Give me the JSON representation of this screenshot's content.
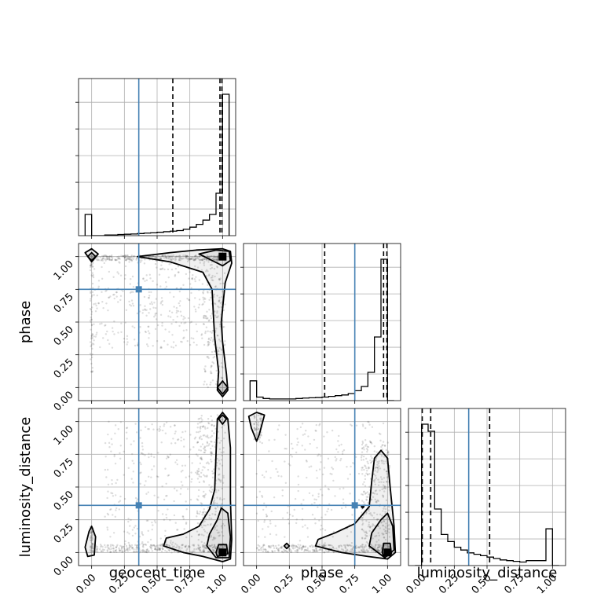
{
  "chart_data": {
    "type": "corner",
    "parameters": [
      "geocent_time",
      "phase",
      "luminosity_distance"
    ],
    "axis_range": [
      -0.1,
      1.1
    ],
    "tick_labels": [
      "0.00",
      "0.25",
      "0.50",
      "0.75",
      "1.00"
    ],
    "tick_values": [
      0.0,
      0.25,
      0.5,
      0.75,
      1.0
    ],
    "grid": true,
    "truths": {
      "geocent_time": 0.36,
      "phase": 0.75,
      "luminosity_distance": 0.36
    },
    "histograms": [
      {
        "parameter": "geocent_time",
        "bin_edges": [
          -0.05,
          0.0,
          0.05,
          0.1,
          0.15,
          0.2,
          0.25,
          0.3,
          0.35,
          0.4,
          0.45,
          0.5,
          0.55,
          0.6,
          0.65,
          0.7,
          0.75,
          0.8,
          0.85,
          0.9,
          0.95,
          1.0,
          1.05
        ],
        "counts": [
          0.15,
          0.0,
          0.0,
          0.005,
          0.005,
          0.008,
          0.01,
          0.012,
          0.015,
          0.018,
          0.02,
          0.024,
          0.028,
          0.032,
          0.036,
          0.045,
          0.06,
          0.08,
          0.11,
          0.15,
          0.3,
          1.0
        ],
        "quantiles": [
          0.62,
          0.98,
          0.995
        ]
      },
      {
        "parameter": "phase",
        "bin_edges": [
          -0.05,
          0.0,
          0.05,
          0.1,
          0.15,
          0.2,
          0.25,
          0.3,
          0.35,
          0.4,
          0.45,
          0.5,
          0.55,
          0.6,
          0.65,
          0.7,
          0.75,
          0.8,
          0.85,
          0.9,
          0.95,
          1.0,
          1.05
        ],
        "counts": [
          0.14,
          0.025,
          0.015,
          0.012,
          0.012,
          0.012,
          0.012,
          0.015,
          0.018,
          0.02,
          0.022,
          0.025,
          0.03,
          0.035,
          0.04,
          0.05,
          0.07,
          0.1,
          0.2,
          0.45,
          1.0,
          0.0
        ],
        "quantiles": [
          0.52,
          0.97,
          0.995
        ]
      },
      {
        "parameter": "luminosity_distance",
        "bin_edges": [
          -0.05,
          0.0,
          0.05,
          0.1,
          0.15,
          0.2,
          0.25,
          0.3,
          0.35,
          0.4,
          0.45,
          0.5,
          0.55,
          0.6,
          0.65,
          0.7,
          0.75,
          0.8,
          0.85,
          0.9,
          0.95,
          1.0,
          1.05
        ],
        "counts": [
          0.0,
          1.0,
          0.95,
          0.4,
          0.22,
          0.17,
          0.13,
          0.11,
          0.09,
          0.08,
          0.07,
          0.06,
          0.05,
          0.04,
          0.035,
          0.03,
          0.025,
          0.035,
          0.035,
          0.035,
          0.26,
          0.0
        ],
        "quantiles": [
          0.005,
          0.07,
          0.52
        ]
      }
    ],
    "density_panels": [
      {
        "x": "geocent_time",
        "y": "phase",
        "outer_contour": [
          [
            -0.05,
            1.03
          ],
          [
            0.0,
            1.06
          ],
          [
            0.05,
            1.02
          ],
          [
            0.0,
            0.96
          ],
          [
            -0.05,
            1.03
          ]
        ],
        "contours": [
          [
            [
              0.35,
              1.0
            ],
            [
              0.6,
              1.03
            ],
            [
              0.8,
              1.05
            ],
            [
              1.0,
              1.06
            ],
            [
              1.06,
              1.04
            ],
            [
              1.07,
              0.95
            ],
            [
              1.02,
              0.8
            ],
            [
              0.99,
              0.5
            ],
            [
              1.0,
              0.35
            ],
            [
              1.03,
              0.1
            ],
            [
              1.04,
              -0.02
            ],
            [
              1.0,
              -0.07
            ],
            [
              0.96,
              -0.02
            ],
            [
              0.97,
              0.12
            ],
            [
              0.94,
              0.38
            ],
            [
              0.93,
              0.55
            ],
            [
              0.92,
              0.75
            ],
            [
              0.85,
              0.88
            ],
            [
              0.6,
              0.96
            ],
            [
              0.35,
              1.0
            ]
          ],
          [
            [
              0.82,
              1.02
            ],
            [
              0.95,
              1.05
            ],
            [
              1.05,
              1.04
            ],
            [
              1.06,
              0.97
            ],
            [
              1.0,
              0.93
            ],
            [
              0.9,
              0.98
            ],
            [
              0.82,
              1.02
            ]
          ]
        ],
        "inner_blobs": [
          [
            [
              0.96,
              0.0
            ],
            [
              1.0,
              0.05
            ],
            [
              1.04,
              0.0
            ],
            [
              1.0,
              -0.05
            ],
            [
              0.96,
              0.0
            ]
          ],
          [
            [
              -0.03,
              1.0
            ],
            [
              0.0,
              1.03
            ],
            [
              0.03,
              1.0
            ],
            [
              0.0,
              0.97
            ],
            [
              -0.03,
              1.0
            ]
          ]
        ],
        "peaks": [
          [
            1.0,
            1.0
          ]
        ]
      },
      {
        "x": "geocent_time",
        "y": "luminosity_distance",
        "outer_contour": [
          [
            -0.05,
            0.04
          ],
          [
            -0.02,
            0.16
          ],
          [
            0.0,
            0.2
          ],
          [
            0.03,
            0.12
          ],
          [
            0.02,
            -0.02
          ],
          [
            -0.03,
            -0.03
          ],
          [
            -0.05,
            0.04
          ]
        ],
        "contours": [
          [
            [
              0.55,
              0.05
            ],
            [
              0.57,
              0.11
            ],
            [
              0.7,
              0.14
            ],
            [
              0.82,
              0.2
            ],
            [
              0.9,
              0.33
            ],
            [
              0.94,
              0.48
            ],
            [
              0.95,
              0.75
            ],
            [
              0.96,
              1.02
            ],
            [
              1.0,
              1.07
            ],
            [
              1.04,
              1.02
            ],
            [
              1.06,
              0.8
            ],
            [
              1.06,
              0.4
            ],
            [
              1.07,
              0.1
            ],
            [
              1.06,
              -0.05
            ],
            [
              1.0,
              -0.07
            ],
            [
              0.85,
              -0.03
            ],
            [
              0.7,
              0.0
            ],
            [
              0.55,
              0.05
            ]
          ],
          [
            [
              0.88,
              0.05
            ],
            [
              0.9,
              0.14
            ],
            [
              0.96,
              0.25
            ],
            [
              0.99,
              0.34
            ],
            [
              1.04,
              0.3
            ],
            [
              1.06,
              0.12
            ],
            [
              1.05,
              -0.04
            ],
            [
              0.95,
              -0.04
            ],
            [
              0.88,
              0.05
            ]
          ],
          [
            [
              0.97,
              1.02
            ],
            [
              1.0,
              1.05
            ],
            [
              1.03,
              1.02
            ],
            [
              1.0,
              0.98
            ],
            [
              0.97,
              1.02
            ]
          ]
        ],
        "inner_blobs": [
          [
            [
              0.95,
              0.0
            ],
            [
              0.97,
              0.06
            ],
            [
              1.03,
              0.06
            ],
            [
              1.04,
              -0.01
            ],
            [
              0.96,
              -0.03
            ],
            [
              0.95,
              0.0
            ]
          ]
        ],
        "peaks": [
          [
            1.0,
            0.0
          ]
        ]
      },
      {
        "x": "phase",
        "y": "luminosity_distance",
        "outer_contour": [
          [
            -0.06,
            1.04
          ],
          [
            0.0,
            1.07
          ],
          [
            0.06,
            1.05
          ],
          [
            0.02,
            0.9
          ],
          [
            0.0,
            0.85
          ],
          [
            -0.04,
            0.95
          ],
          [
            -0.06,
            1.04
          ]
        ],
        "contours": [
          [
            [
              0.45,
              0.05
            ],
            [
              0.47,
              0.1
            ],
            [
              0.6,
              0.15
            ],
            [
              0.75,
              0.22
            ],
            [
              0.86,
              0.35
            ],
            [
              0.88,
              0.55
            ],
            [
              0.9,
              0.72
            ],
            [
              0.95,
              0.78
            ],
            [
              1.0,
              0.72
            ],
            [
              1.02,
              0.5
            ],
            [
              1.05,
              0.2
            ],
            [
              1.06,
              0.0
            ],
            [
              1.0,
              -0.05
            ],
            [
              0.85,
              -0.03
            ],
            [
              0.65,
              0.0
            ],
            [
              0.45,
              0.05
            ]
          ],
          [
            [
              0.86,
              0.05
            ],
            [
              0.88,
              0.15
            ],
            [
              0.95,
              0.25
            ],
            [
              1.0,
              0.3
            ],
            [
              1.04,
              0.2
            ],
            [
              1.05,
              0.02
            ],
            [
              0.98,
              -0.04
            ],
            [
              0.86,
              0.05
            ]
          ]
        ],
        "inner_blobs": [
          [
            [
              0.96,
              0.0
            ],
            [
              0.97,
              0.07
            ],
            [
              1.02,
              0.07
            ],
            [
              1.03,
              -0.01
            ],
            [
              0.97,
              -0.03
            ],
            [
              0.96,
              0.0
            ]
          ],
          [
            [
              0.21,
              0.05
            ],
            [
              0.23,
              0.07
            ],
            [
              0.25,
              0.05
            ],
            [
              0.23,
              0.03
            ],
            [
              0.21,
              0.05
            ]
          ],
          [
            [
              0.8,
              0.35
            ],
            [
              0.81,
              0.36
            ],
            [
              0.82,
              0.35
            ],
            [
              0.81,
              0.34
            ],
            [
              0.8,
              0.35
            ]
          ]
        ],
        "peaks": [
          [
            1.0,
            0.0
          ]
        ]
      }
    ]
  }
}
